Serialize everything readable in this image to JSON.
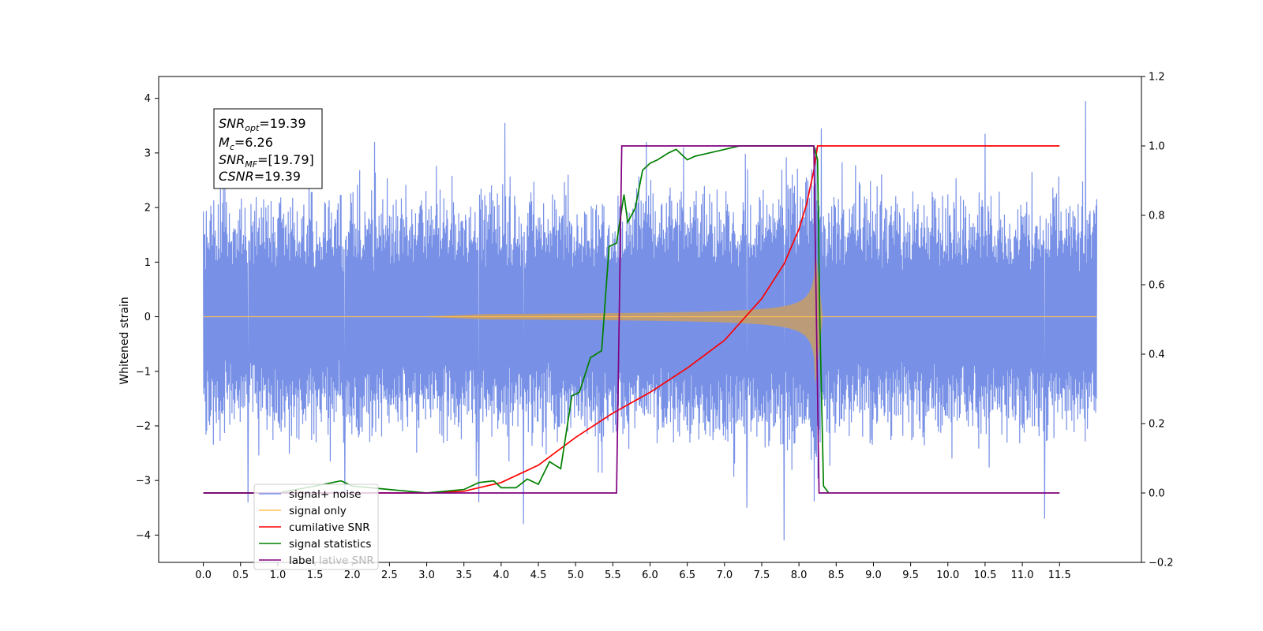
{
  "chart_data": {
    "type": "line",
    "ylabel": "Whitened strain",
    "xlabel": "",
    "xlim": [
      -0.6,
      12.6
    ],
    "ylim": [
      -4.5,
      4.4
    ],
    "y2lim": [
      -0.2,
      1.2
    ],
    "xticks": [
      "0.0",
      "0.5",
      "1.0",
      "1.5",
      "2.0",
      "2.5",
      "3.0",
      "3.5",
      "4.0",
      "4.5",
      "5.0",
      "5.5",
      "6.0",
      "6.5",
      "7.0",
      "7.5",
      "8.0",
      "8.5",
      "9.0",
      "9.5",
      "10.0",
      "10.5",
      "11.0",
      "11.5"
    ],
    "yticks": [
      "4",
      "3",
      "2",
      "1",
      "0",
      "−1",
      "−2",
      "−3",
      "−4"
    ],
    "y2ticks": [
      "1.2",
      "1.0",
      "0.8",
      "0.6",
      "0.4",
      "0.2",
      "0.0",
      "−0.2"
    ],
    "info_box": {
      "snr_opt": {
        "sym": "SNR",
        "sub": "opt",
        "val": "=19.39"
      },
      "mc": {
        "sym": "M",
        "sub": "c",
        "val": "=6.26"
      },
      "snr_mf": {
        "sym": "SNR",
        "sub": "MF",
        "val": "=[19.79]"
      },
      "csnr": {
        "sym": "CSNR",
        "val": "=19.39"
      }
    },
    "legend": {
      "placement": "lower-left",
      "entries": [
        "signal+ noise",
        "signal only",
        "cumilative SNR",
        "signal statistics",
        "label"
      ],
      "ghost_text": "lative SNR"
    },
    "series": [
      {
        "name": "signal+ noise",
        "axis": "left",
        "color": "#7891e6",
        "x_range": [
          0.0,
          12.0
        ],
        "noise_envelope": 2.4,
        "peaks": [
          [
            0.6,
            -3.4
          ],
          [
            1.9,
            -3.3
          ],
          [
            2.3,
            3.2
          ],
          [
            3.7,
            -3.4
          ],
          [
            4.05,
            3.55
          ],
          [
            4.3,
            -3.8
          ],
          [
            5.95,
            3.2
          ],
          [
            6.45,
            3.1
          ],
          [
            7.3,
            -3.5
          ],
          [
            7.8,
            -4.1
          ],
          [
            8.3,
            3.45
          ],
          [
            10.5,
            3.35
          ],
          [
            11.3,
            -3.7
          ],
          [
            11.85,
            3.95
          ]
        ]
      },
      {
        "name": "signal only",
        "axis": "left",
        "color": "#ffbf4d",
        "x_range": [
          0.0,
          12.0
        ],
        "chirp_start": 3.0,
        "merger": 8.2,
        "peak_amplitude": 1.5
      },
      {
        "name": "cumilative SNR",
        "axis": "right",
        "color": "#ff0000",
        "points": [
          [
            0.0,
            0.0
          ],
          [
            3.0,
            0.0
          ],
          [
            3.5,
            0.005
          ],
          [
            4.0,
            0.03
          ],
          [
            4.5,
            0.08
          ],
          [
            5.0,
            0.16
          ],
          [
            5.5,
            0.23
          ],
          [
            6.0,
            0.29
          ],
          [
            6.5,
            0.36
          ],
          [
            7.0,
            0.44
          ],
          [
            7.5,
            0.56
          ],
          [
            7.8,
            0.66
          ],
          [
            8.0,
            0.76
          ],
          [
            8.1,
            0.83
          ],
          [
            8.2,
            0.93
          ],
          [
            8.25,
            1.0
          ],
          [
            11.5,
            1.0
          ]
        ]
      },
      {
        "name": "signal statistics",
        "axis": "right",
        "color": "#008000",
        "points": [
          [
            0.0,
            0.0
          ],
          [
            1.0,
            0.0
          ],
          [
            1.5,
            0.02
          ],
          [
            1.85,
            0.035
          ],
          [
            2.0,
            0.02
          ],
          [
            2.5,
            0.01
          ],
          [
            3.0,
            0.0
          ],
          [
            3.5,
            0.01
          ],
          [
            3.7,
            0.03
          ],
          [
            3.9,
            0.035
          ],
          [
            4.0,
            0.015
          ],
          [
            4.2,
            0.015
          ],
          [
            4.35,
            0.04
          ],
          [
            4.5,
            0.025
          ],
          [
            4.65,
            0.09
          ],
          [
            4.8,
            0.07
          ],
          [
            4.95,
            0.28
          ],
          [
            5.05,
            0.29
          ],
          [
            5.2,
            0.39
          ],
          [
            5.35,
            0.41
          ],
          [
            5.45,
            0.71
          ],
          [
            5.55,
            0.72
          ],
          [
            5.65,
            0.86
          ],
          [
            5.7,
            0.78
          ],
          [
            5.8,
            0.82
          ],
          [
            5.9,
            0.93
          ],
          [
            6.0,
            0.95
          ],
          [
            6.1,
            0.96
          ],
          [
            6.25,
            0.98
          ],
          [
            6.35,
            0.99
          ],
          [
            6.5,
            0.96
          ],
          [
            6.6,
            0.97
          ],
          [
            6.8,
            0.98
          ],
          [
            7.0,
            0.99
          ],
          [
            7.2,
            1.0
          ],
          [
            8.2,
            1.0
          ],
          [
            8.25,
            0.96
          ],
          [
            8.28,
            0.5
          ],
          [
            8.33,
            0.02
          ],
          [
            8.4,
            0.0
          ]
        ]
      },
      {
        "name": "label",
        "axis": "right",
        "color": "#800080",
        "points": [
          [
            0.0,
            0.0
          ],
          [
            5.55,
            0.0
          ],
          [
            5.62,
            1.0
          ],
          [
            8.2,
            1.0
          ],
          [
            8.27,
            0.0
          ],
          [
            11.5,
            0.0
          ]
        ]
      }
    ]
  }
}
